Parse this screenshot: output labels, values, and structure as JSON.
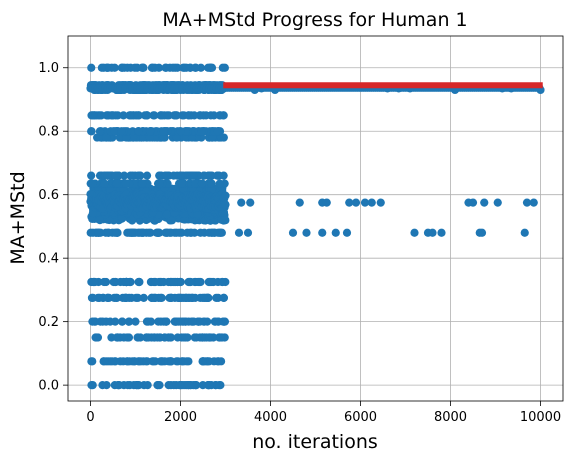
{
  "chart_data": {
    "type": "scatter",
    "title": "MA+MStd Progress for Human 1",
    "xlabel": "no. iterations",
    "ylabel": "MA+MStd",
    "xlim": [
      -500,
      10500
    ],
    "ylim": [
      -0.05,
      1.1
    ],
    "xticks": [
      0,
      2000,
      4000,
      6000,
      8000,
      10000
    ],
    "xtick_labels": [
      "0",
      "2000",
      "4000",
      "6000",
      "8000",
      "10000"
    ],
    "yticks": [
      0.0,
      0.2,
      0.4,
      0.6,
      0.8,
      1.0
    ],
    "ytick_labels": [
      "0.0",
      "0.2",
      "0.4",
      "0.6",
      "0.8",
      "1.0"
    ],
    "grid": true,
    "legend": "none",
    "colors": {
      "scatter": "#1f77b4",
      "line": "#d62728"
    },
    "series": [
      {
        "kind": "scatter",
        "x_range_dense": [
          0,
          3000
        ],
        "y_levels_dense": [
          0.0,
          0.075,
          0.15,
          0.2,
          0.275,
          0.325,
          0.48,
          0.53,
          0.55,
          0.57,
          0.59,
          0.61,
          0.635,
          0.66,
          0.78,
          0.8,
          0.85,
          0.93,
          0.945,
          1.0
        ],
        "sparse_points": [
          [
            3300,
            0.48
          ],
          [
            3500,
            0.48
          ],
          [
            3350,
            0.575
          ],
          [
            3550,
            0.575
          ],
          [
            3650,
            0.93
          ],
          [
            3800,
            0.935
          ],
          [
            4100,
            0.93
          ],
          [
            4500,
            0.48
          ],
          [
            4650,
            0.575
          ],
          [
            4800,
            0.48
          ],
          [
            5150,
            0.48
          ],
          [
            5150,
            0.575
          ],
          [
            5250,
            0.575
          ],
          [
            5450,
            0.48
          ],
          [
            5700,
            0.48
          ],
          [
            5750,
            0.575
          ],
          [
            5900,
            0.575
          ],
          [
            6100,
            0.575
          ],
          [
            6250,
            0.575
          ],
          [
            6450,
            0.575
          ],
          [
            6600,
            0.935
          ],
          [
            6850,
            0.935
          ],
          [
            7100,
            0.935
          ],
          [
            7200,
            0.48
          ],
          [
            7500,
            0.48
          ],
          [
            7600,
            0.48
          ],
          [
            7800,
            0.48
          ],
          [
            8100,
            0.93
          ],
          [
            8400,
            0.575
          ],
          [
            8500,
            0.575
          ],
          [
            8650,
            0.48
          ],
          [
            8700,
            0.48
          ],
          [
            8750,
            0.575
          ],
          [
            9050,
            0.575
          ],
          [
            9150,
            0.935
          ],
          [
            9350,
            0.935
          ],
          [
            9650,
            0.48
          ],
          [
            9700,
            0.575
          ],
          [
            9850,
            0.575
          ],
          [
            10000,
            0.93
          ]
        ]
      },
      {
        "kind": "line",
        "x": [
          2950,
          10050
        ],
        "y": [
          0.945,
          0.945
        ]
      }
    ]
  }
}
